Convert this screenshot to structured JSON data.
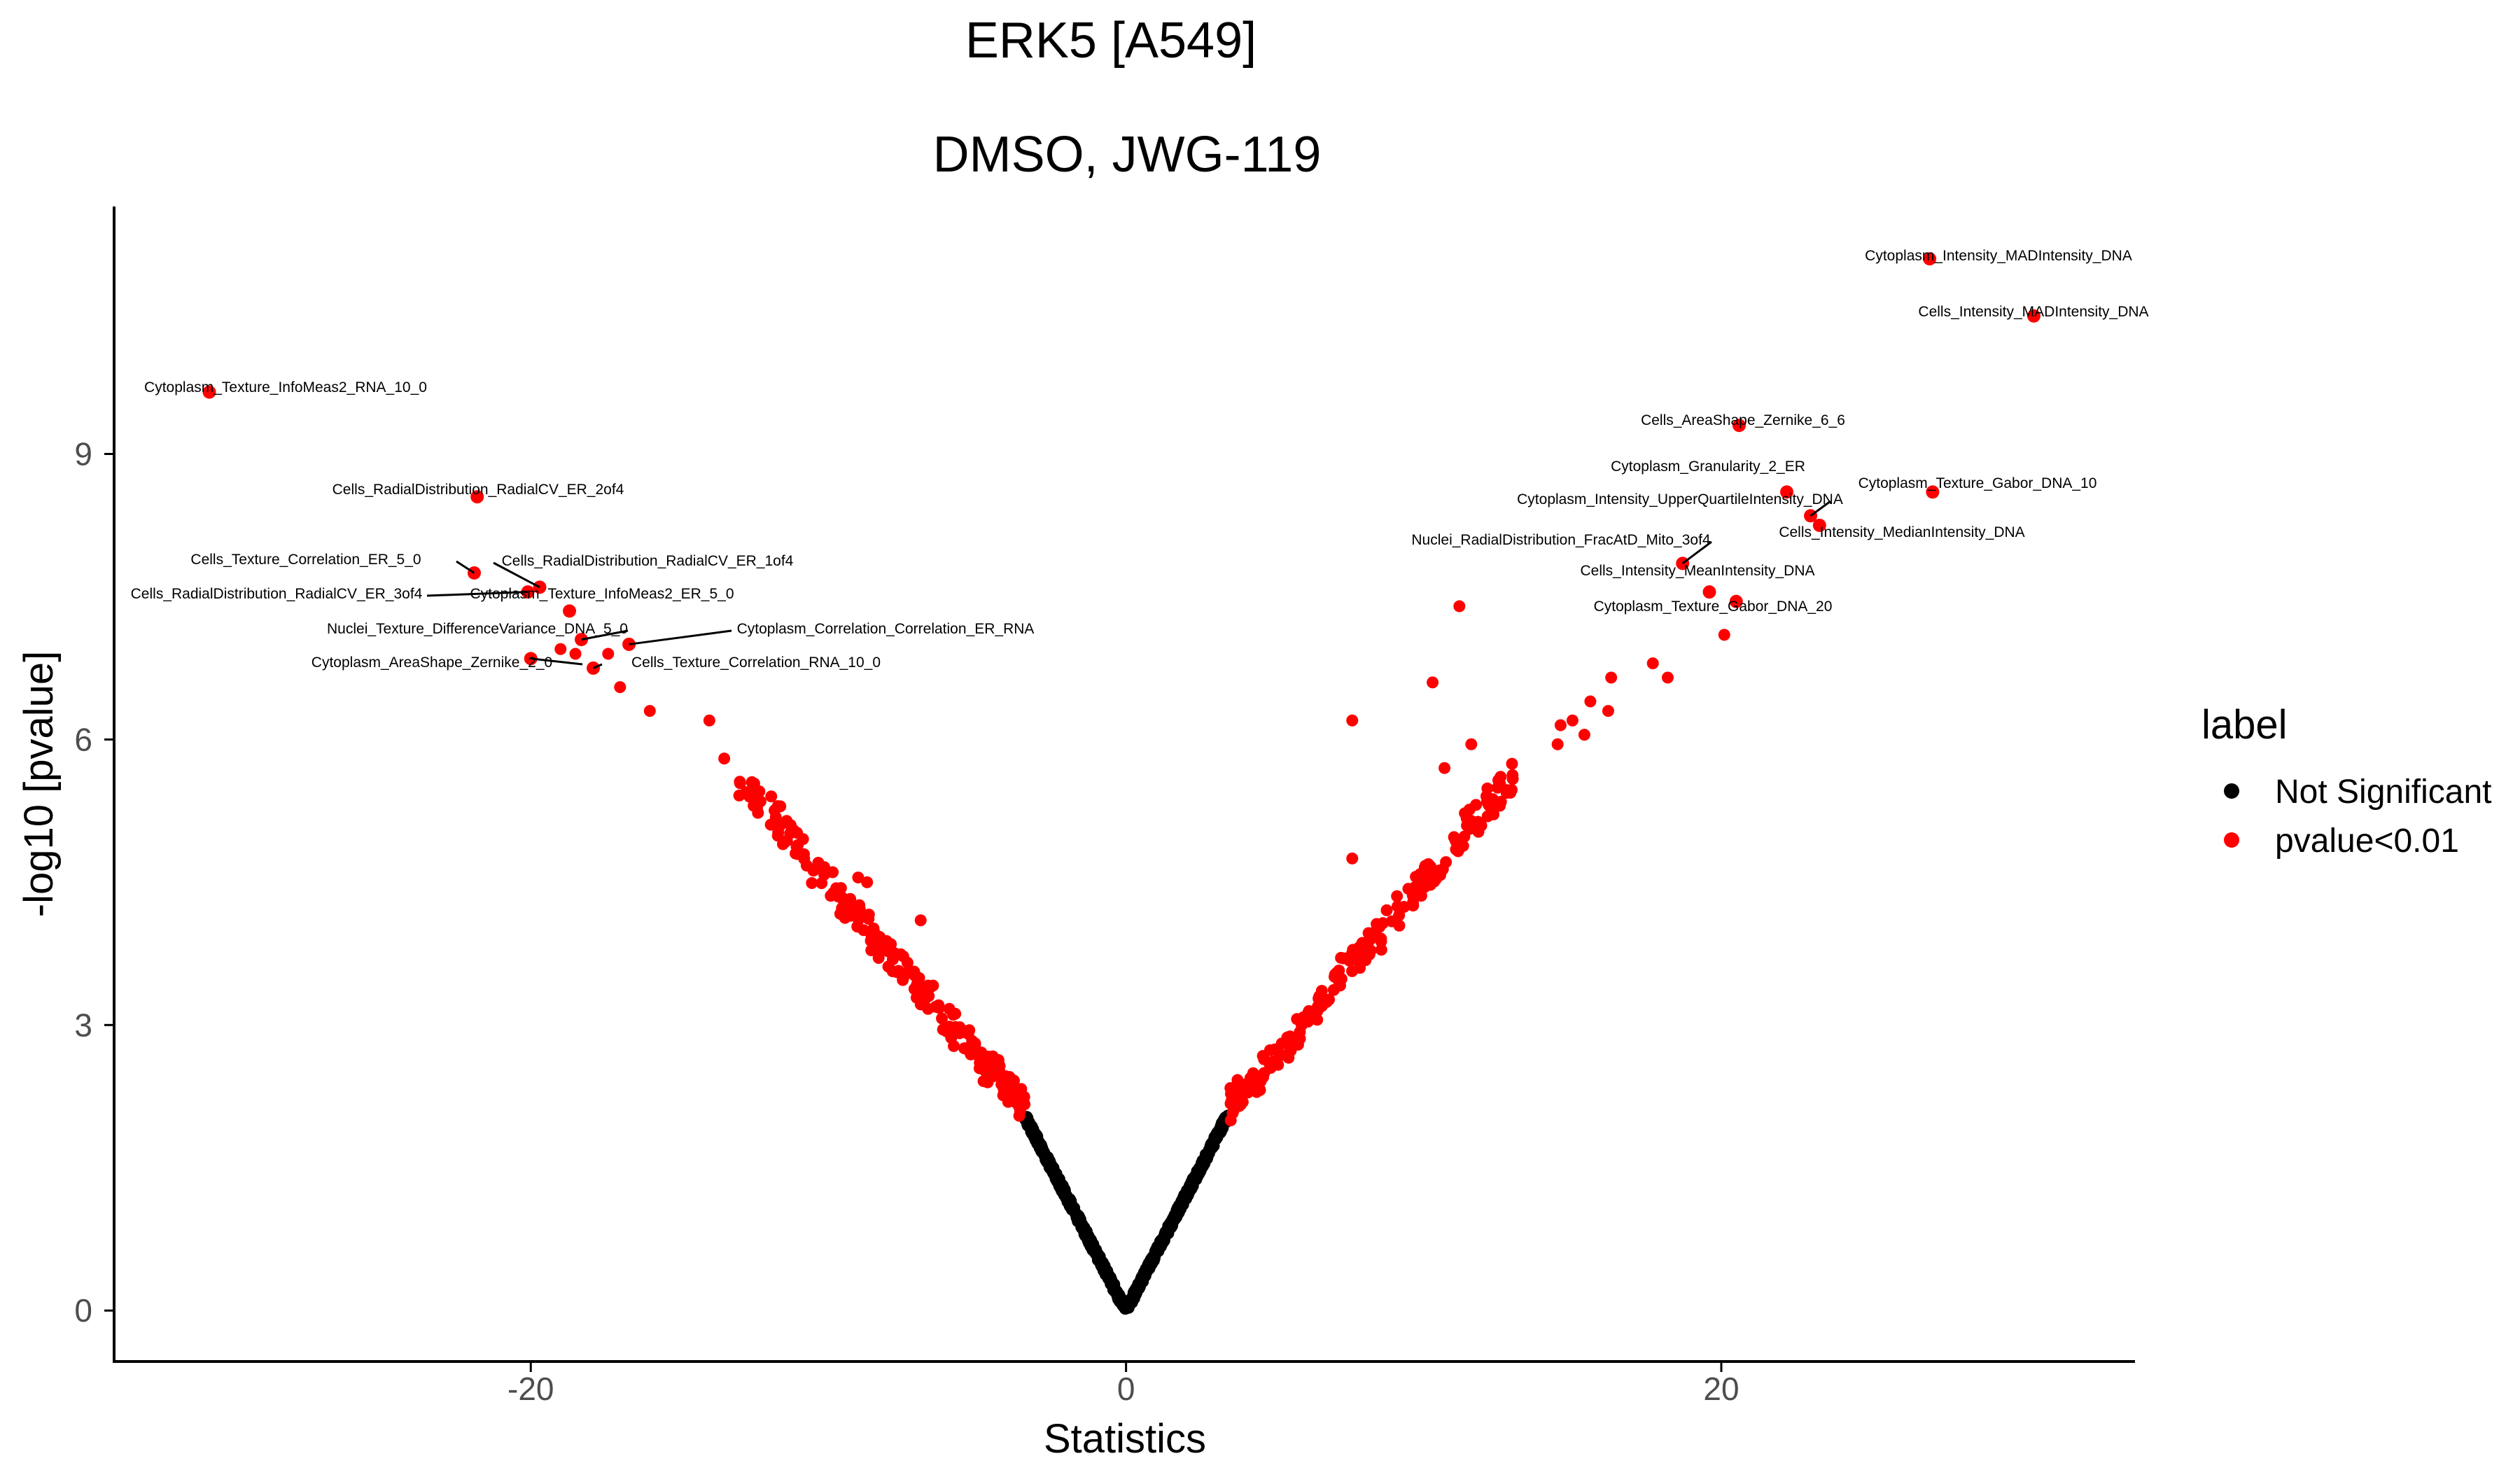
{
  "chart_data": {
    "type": "scatter",
    "title": "ERK5 [A549]",
    "subtitle": "DMSO, JWG-119",
    "xlabel": "Statistics",
    "ylabel": "-log10 [pvalue]",
    "xlim": [
      -34,
      33.5
    ],
    "ylim": [
      -0.55,
      11.6
    ],
    "x_ticks": [
      -20,
      0,
      20
    ],
    "y_ticks": [
      0,
      3,
      6,
      9
    ],
    "grid": false,
    "legend": {
      "title": "label",
      "position": "right",
      "entries": [
        {
          "name": "Not Significant",
          "color": "#000000"
        },
        {
          "name": "pvalue<0.01",
          "color": "#ff0000"
        }
      ]
    },
    "series": [
      {
        "name": "Not Significant",
        "color": "#000000",
        "x_range": [
          -3.4,
          3.5
        ],
        "y_max": 2.05
      },
      {
        "name": "pvalue<0.01",
        "color": "#ff0000"
      }
    ],
    "labeled_points": [
      {
        "label": "Cytoplasm_Intensity_MADIntensity_DNA",
        "x": 27.0,
        "y": 11.05
      },
      {
        "label": "Cells_Intensity_MADIntensity_DNA",
        "x": 30.5,
        "y": 10.45
      },
      {
        "label": "Cytoplasm_Texture_InfoMeas2_RNA_10_0",
        "x": -30.8,
        "y": 9.65
      },
      {
        "label": "Cells_AreaShape_Zernike_6_6",
        "x": 20.6,
        "y": 9.3
      },
      {
        "label": "Cells_RadialDistribution_RadialCV_ER_2of4",
        "x": -21.8,
        "y": 8.55
      },
      {
        "label": "Cytoplasm_Granularity_2_ER",
        "x": 22.2,
        "y": 8.6
      },
      {
        "label": "Cytoplasm_Texture_Gabor_DNA_10",
        "x": 27.1,
        "y": 8.6
      },
      {
        "label": "Cytoplasm_Intensity_UpperQuartileIntensity_DNA",
        "x": 23.0,
        "y": 8.35
      },
      {
        "label": "Cells_Intensity_MedianIntensity_DNA",
        "x": 23.3,
        "y": 8.25
      },
      {
        "label": "Nuclei_RadialDistribution_FracAtD_Mito_3of4",
        "x": 18.7,
        "y": 7.85
      },
      {
        "label": "Cells_Texture_Correlation_ER_5_0",
        "x": -21.9,
        "y": 7.75
      },
      {
        "label": "Cells_RadialDistribution_RadialCV_ER_1of4",
        "x": -19.7,
        "y": 7.6
      },
      {
        "label": "Cells_RadialDistribution_RadialCV_ER_3of4",
        "x": -20.1,
        "y": 7.55
      },
      {
        "label": "Cells_Intensity_MeanIntensity_DNA",
        "x": 19.6,
        "y": 7.55
      },
      {
        "label": "Cytoplasm_Texture_InfoMeas2_ER_5_0",
        "x": -18.7,
        "y": 7.35
      },
      {
        "label": "Cytoplasm_Texture_Gabor_DNA_20",
        "x": 20.5,
        "y": 7.45
      },
      {
        "label": "Nuclei_Texture_DifferenceVariance_DNA_5_0",
        "x": -18.3,
        "y": 7.05
      },
      {
        "label": "Cytoplasm_Correlation_Correlation_ER_RNA",
        "x": -16.7,
        "y": 7.0
      },
      {
        "label": "Cytoplasm_AreaShape_Zernike_2_0",
        "x": -20.0,
        "y": 6.85
      },
      {
        "label": "Cells_Texture_Correlation_RNA_10_0",
        "x": -17.9,
        "y": 6.75
      }
    ],
    "scattered_points": [
      {
        "x": 11.2,
        "y": 7.4
      },
      {
        "x": 10.3,
        "y": 6.6
      },
      {
        "x": 7.6,
        "y": 6.2
      },
      {
        "x": 17.7,
        "y": 6.8
      },
      {
        "x": 18.2,
        "y": 6.65
      },
      {
        "x": 20.1,
        "y": 7.1
      },
      {
        "x": 16.3,
        "y": 6.65
      },
      {
        "x": 15.6,
        "y": 6.4
      },
      {
        "x": 16.2,
        "y": 6.3
      },
      {
        "x": 14.6,
        "y": 6.15
      },
      {
        "x": 15.0,
        "y": 6.2
      },
      {
        "x": 15.4,
        "y": 6.05
      },
      {
        "x": 14.5,
        "y": 5.95
      },
      {
        "x": 11.6,
        "y": 5.95
      },
      {
        "x": 10.7,
        "y": 5.7
      },
      {
        "x": 7.6,
        "y": 4.75
      },
      {
        "x": -9.0,
        "y": 4.55
      },
      {
        "x": -8.7,
        "y": 4.5
      },
      {
        "x": -6.9,
        "y": 4.1
      },
      {
        "x": -16.0,
        "y": 6.3
      },
      {
        "x": -14.0,
        "y": 6.2
      },
      {
        "x": -13.5,
        "y": 5.8
      },
      {
        "x": -12.5,
        "y": 5.5
      },
      {
        "x": -11.7,
        "y": 5.3
      },
      {
        "x": -17.4,
        "y": 6.9
      },
      {
        "x": -17.0,
        "y": 6.55
      },
      {
        "x": -18.5,
        "y": 6.9
      },
      {
        "x": -19.0,
        "y": 6.95
      }
    ]
  }
}
